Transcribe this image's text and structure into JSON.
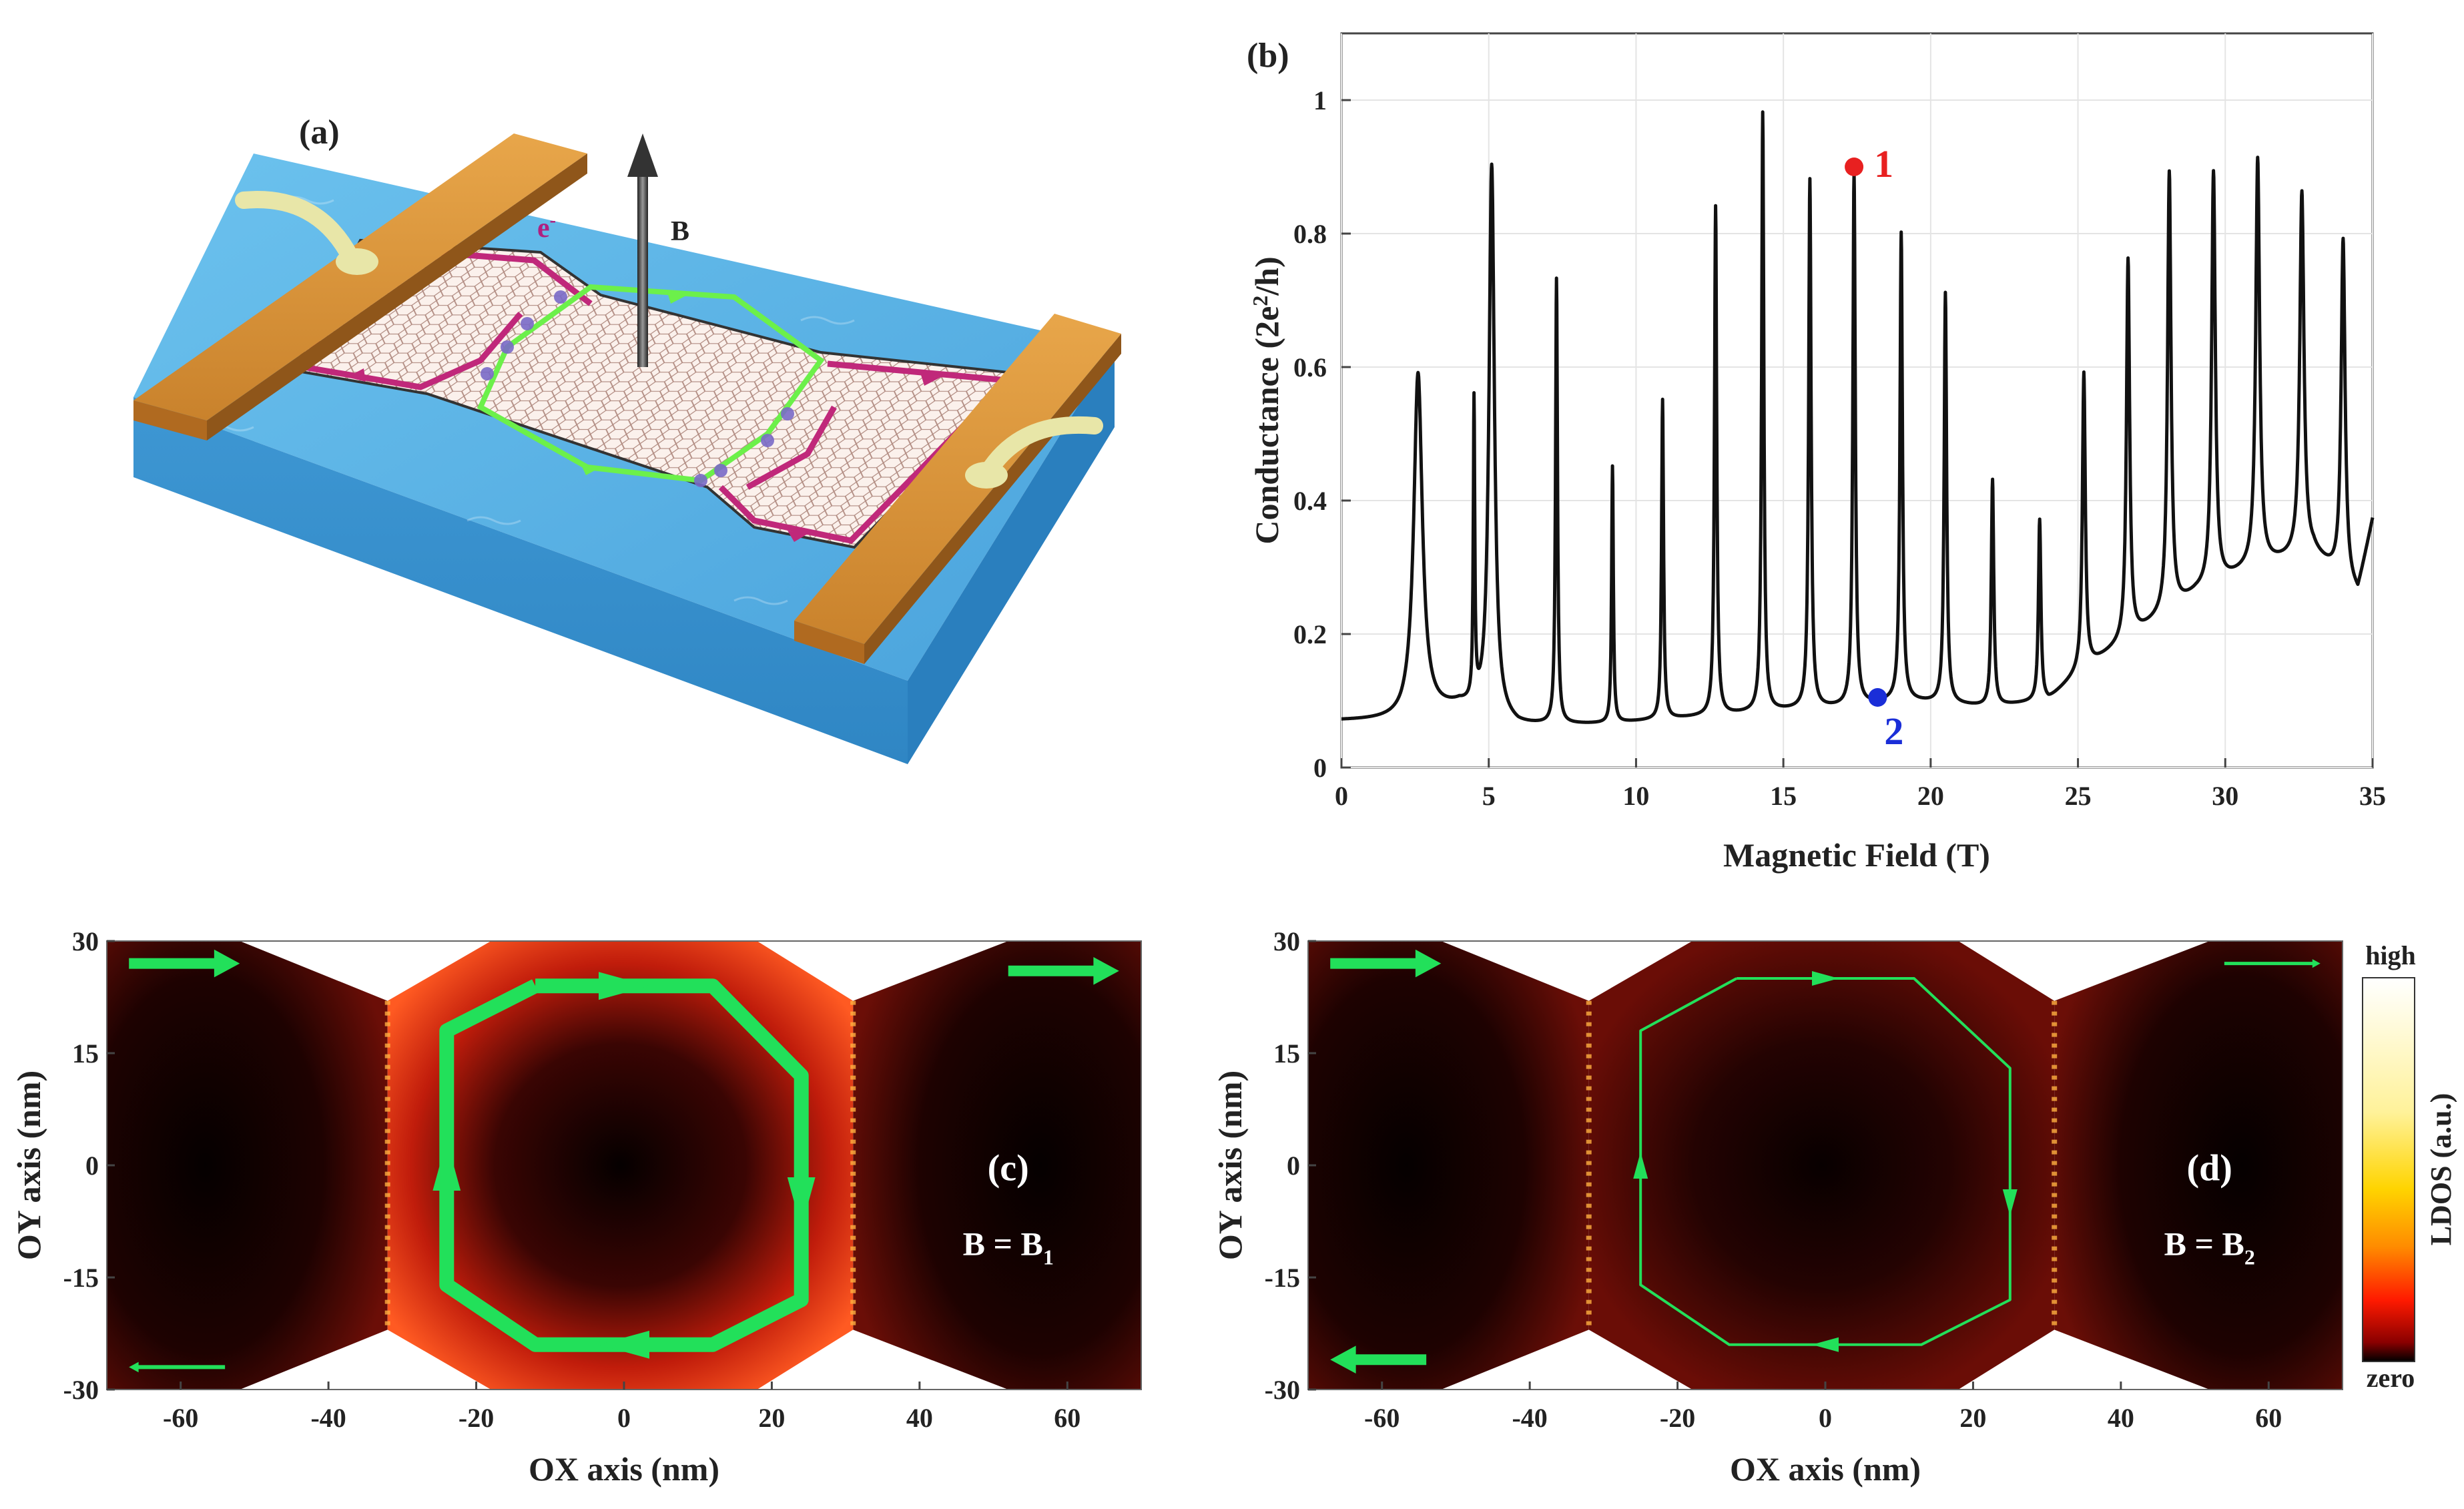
{
  "panels": {
    "a": {
      "label": "(a)",
      "electron_label": "e",
      "electron_sup": "-",
      "field_label": "B"
    },
    "b": {
      "label": "(b)"
    },
    "c": {
      "label": "(c)",
      "field_eq": "B = B",
      "field_sub": "1"
    },
    "d": {
      "label": "(d)",
      "field_eq": "B = B",
      "field_sub": "2"
    }
  },
  "colorbar": {
    "high": "high",
    "low": "zero",
    "label": "LDOS (a.u.)"
  },
  "colors": {
    "curve": "#111111",
    "green": "#22e05a",
    "point1": "#e82020",
    "point2": "#1a2ed8",
    "magenta": "#c0287a",
    "substrate": "#5fb6e6",
    "electrode": "#d9963a"
  },
  "chart_data": [
    {
      "type": "line",
      "title": "",
      "xlabel": "Magnetic Field (T)",
      "ylabel": "Conductance (2e",
      "ylabel_sup": "2",
      "ylabel_tail": "/h)",
      "xlim": [
        0,
        35
      ],
      "ylim": [
        0,
        1.1
      ],
      "xticks": [
        0,
        5,
        10,
        15,
        20,
        25,
        30,
        35
      ],
      "yticks": [
        0,
        0.2,
        0.4,
        0.6,
        0.8,
        1
      ],
      "xtick_labels": [
        "0",
        "5",
        "10",
        "15",
        "20",
        "25",
        "30",
        "35"
      ],
      "ytick_labels": [
        "0",
        "0.2",
        "0.4",
        "0.6",
        "0.8",
        "1"
      ],
      "grid": true,
      "baseline": [
        [
          0,
          0.07
        ],
        [
          2,
          0.07
        ],
        [
          4,
          0.09
        ],
        [
          6,
          0.062
        ],
        [
          9,
          0.065
        ],
        [
          12,
          0.075
        ],
        [
          15,
          0.085
        ],
        [
          17,
          0.09
        ],
        [
          19,
          0.1
        ],
        [
          22,
          0.09
        ],
        [
          24,
          0.1
        ],
        [
          25,
          0.14
        ],
        [
          27,
          0.2
        ],
        [
          29,
          0.26
        ],
        [
          31,
          0.3
        ],
        [
          33,
          0.32
        ],
        [
          34.5,
          0.26
        ],
        [
          35,
          0.37
        ]
      ],
      "peaks": [
        {
          "x": 2.6,
          "y": 0.59,
          "w": 0.35
        },
        {
          "x": 4.5,
          "y": 0.53,
          "w": 0.06
        },
        {
          "x": 5.1,
          "y": 0.9,
          "w": 0.22
        },
        {
          "x": 7.3,
          "y": 0.73,
          "w": 0.08
        },
        {
          "x": 9.2,
          "y": 0.45,
          "w": 0.07
        },
        {
          "x": 10.9,
          "y": 0.55,
          "w": 0.08
        },
        {
          "x": 12.7,
          "y": 0.84,
          "w": 0.09
        },
        {
          "x": 14.3,
          "y": 0.98,
          "w": 0.09
        },
        {
          "x": 15.9,
          "y": 0.88,
          "w": 0.1
        },
        {
          "x": 17.4,
          "y": 0.89,
          "w": 0.1
        },
        {
          "x": 19.0,
          "y": 0.8,
          "w": 0.1
        },
        {
          "x": 20.5,
          "y": 0.71,
          "w": 0.1
        },
        {
          "x": 22.1,
          "y": 0.43,
          "w": 0.1
        },
        {
          "x": 23.7,
          "y": 0.37,
          "w": 0.1
        },
        {
          "x": 25.2,
          "y": 0.59,
          "w": 0.12
        },
        {
          "x": 26.7,
          "y": 0.76,
          "w": 0.13
        },
        {
          "x": 28.1,
          "y": 0.89,
          "w": 0.14
        },
        {
          "x": 29.6,
          "y": 0.89,
          "w": 0.15
        },
        {
          "x": 31.1,
          "y": 0.91,
          "w": 0.16
        },
        {
          "x": 32.6,
          "y": 0.86,
          "w": 0.17
        },
        {
          "x": 34.0,
          "y": 0.79,
          "w": 0.16
        }
      ],
      "points": [
        {
          "label": "1",
          "x": 17.4,
          "y": 0.9
        },
        {
          "label": "2",
          "x": 18.2,
          "y": 0.105
        }
      ]
    },
    {
      "type": "heatmap",
      "panel": "c",
      "xlabel": "OX axis (nm)",
      "ylabel": "OY axis (nm)",
      "xlim": [
        -70,
        70
      ],
      "ylim": [
        -30,
        30
      ],
      "xticks": [
        -60,
        -40,
        -20,
        0,
        20,
        40,
        60
      ],
      "yticks": [
        30,
        15,
        0,
        -15,
        -30
      ],
      "xtick_labels": [
        "-60",
        "-40",
        "-20",
        "0",
        "20",
        "40",
        "60"
      ],
      "ytick_labels": [
        "30",
        "15",
        "0",
        "-15",
        "-30"
      ],
      "loop": [
        [
          -12,
          24
        ],
        [
          12,
          24
        ],
        [
          24,
          12
        ],
        [
          24,
          -18
        ],
        [
          12,
          -24
        ],
        [
          -12,
          -24
        ],
        [
          -24,
          -16
        ],
        [
          -24,
          18
        ]
      ]
    },
    {
      "type": "heatmap",
      "panel": "d",
      "xlabel": "OX axis (nm)",
      "ylabel": "OY axis (nm)",
      "xlim": [
        -70,
        70
      ],
      "ylim": [
        -30,
        30
      ],
      "xticks": [
        -60,
        -40,
        -20,
        0,
        20,
        40,
        60
      ],
      "yticks": [
        30,
        15,
        0,
        -15,
        -30
      ],
      "xtick_labels": [
        "-60",
        "-40",
        "-20",
        "0",
        "20",
        "40",
        "60"
      ],
      "ytick_labels": [
        "30",
        "15",
        "0",
        "-15",
        "-30"
      ],
      "loop": [
        [
          -12,
          25
        ],
        [
          12,
          25
        ],
        [
          25,
          13
        ],
        [
          25,
          -18
        ],
        [
          13,
          -24
        ],
        [
          -13,
          -24
        ],
        [
          -25,
          -16
        ],
        [
          -25,
          18
        ]
      ]
    }
  ]
}
